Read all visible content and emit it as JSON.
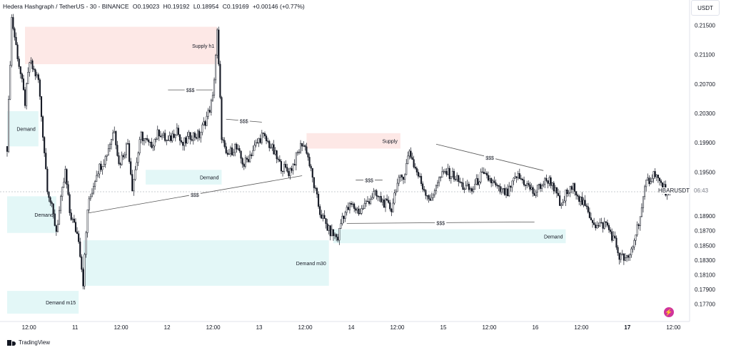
{
  "header": {
    "title": "Hedera Hashgraph / TetherUS - 30 - BINANCE",
    "open": "O0.19023",
    "high": "H0.19192",
    "low": "L0.18954",
    "close": "C0.19169",
    "change": "+0.00146 (+0.77%)"
  },
  "currency_button": "USDT",
  "symbol_tag": "HBARUSDT",
  "countdown": "06:43",
  "footer": {
    "brand": "TradingView"
  },
  "colors": {
    "up": "#131722",
    "down": "#131722",
    "supply_zone": "#fde8e6",
    "demand_zone": "#e3f7f7",
    "line": "#555555",
    "text": "#131722",
    "axis_text": "#131722",
    "flash_badge": "#d0349b"
  },
  "icons": {
    "flash": "lightning-icon",
    "logo": "tradingview-logo-icon"
  },
  "chart_data": {
    "type": "candlestick",
    "title": "Hedera Hashgraph / TetherUS - 30 - BINANCE",
    "y_ticks": [
      "0.21500",
      "0.21100",
      "0.20700",
      "0.20300",
      "0.19900",
      "0.19500",
      "0.18900",
      "0.18700",
      "0.18500",
      "0.18300",
      "0.18100",
      "0.17900",
      "0.17700"
    ],
    "ylim": [
      0.1757,
      0.2168
    ],
    "x_ticks": [
      "12:00",
      "11",
      "12:00",
      "12",
      "12:00",
      "13",
      "12:00",
      "14",
      "12:00",
      "15",
      "12:00",
      "16",
      "12:00",
      "17",
      "12:00"
    ],
    "candles_per_day": 48,
    "first_tick_index": 12,
    "last_price": 0.19169,
    "grid": false,
    "path_points": [
      [
        0,
        0.1985
      ],
      [
        1,
        0.216
      ],
      [
        4,
        0.2045
      ],
      [
        5,
        0.21
      ],
      [
        7,
        0.2075
      ],
      [
        9,
        0.193
      ],
      [
        11,
        0.187
      ],
      [
        13,
        0.195
      ],
      [
        14,
        0.1895
      ],
      [
        16,
        0.186
      ],
      [
        17,
        0.18
      ],
      [
        18,
        0.19
      ],
      [
        20,
        0.195
      ],
      [
        22,
        0.197
      ],
      [
        24,
        0.201
      ],
      [
        25,
        0.196
      ],
      [
        27,
        0.199
      ],
      [
        28,
        0.193
      ],
      [
        30,
        0.2
      ],
      [
        32,
        0.1985
      ],
      [
        34,
        0.2005
      ],
      [
        36,
        0.199
      ],
      [
        38,
        0.201
      ],
      [
        39,
        0.1985
      ],
      [
        41,
        0.2
      ],
      [
        43,
        0.2
      ],
      [
        45,
        0.203
      ],
      [
        46,
        0.205
      ],
      [
        47,
        0.214
      ],
      [
        48,
        0.2
      ],
      [
        49,
        0.197
      ],
      [
        51,
        0.1985
      ],
      [
        53,
        0.196
      ],
      [
        55,
        0.198
      ],
      [
        57,
        0.2
      ],
      [
        59,
        0.1985
      ],
      [
        61,
        0.196
      ],
      [
        63,
        0.195
      ],
      [
        64,
        0.196
      ],
      [
        66,
        0.199
      ],
      [
        67,
        0.198
      ],
      [
        68,
        0.195
      ],
      [
        70,
        0.1895
      ],
      [
        72,
        0.187
      ],
      [
        74,
        0.186
      ],
      [
        75,
        0.189
      ],
      [
        77,
        0.1905
      ],
      [
        79,
        0.1895
      ],
      [
        80,
        0.1905
      ],
      [
        82,
        0.192
      ],
      [
        84,
        0.191
      ],
      [
        86,
        0.19
      ],
      [
        87,
        0.193
      ],
      [
        89,
        0.195
      ],
      [
        90,
        0.198
      ],
      [
        91,
        0.196
      ],
      [
        93,
        0.193
      ],
      [
        95,
        0.191
      ],
      [
        96,
        0.1935
      ],
      [
        98,
        0.195
      ],
      [
        100,
        0.1945
      ],
      [
        102,
        0.193
      ],
      [
        104,
        0.1925
      ],
      [
        106,
        0.1945
      ],
      [
        108,
        0.194
      ],
      [
        110,
        0.1925
      ],
      [
        112,
        0.192
      ],
      [
        114,
        0.1945
      ],
      [
        116,
        0.1935
      ],
      [
        118,
        0.192
      ],
      [
        119,
        0.193
      ],
      [
        121,
        0.194
      ],
      [
        122,
        0.1935
      ],
      [
        124,
        0.19
      ],
      [
        125,
        0.192
      ],
      [
        127,
        0.193
      ],
      [
        128,
        0.1915
      ],
      [
        130,
        0.1895
      ],
      [
        132,
        0.1875
      ],
      [
        134,
        0.188
      ],
      [
        136,
        0.1855
      ],
      [
        137,
        0.1835
      ],
      [
        139,
        0.183
      ],
      [
        140,
        0.185
      ],
      [
        142,
        0.19
      ],
      [
        143,
        0.1935
      ],
      [
        145,
        0.195
      ],
      [
        146,
        0.1935
      ],
      [
        148,
        0.192
      ],
      [
        149,
        0.1917
      ]
    ],
    "zones": [
      {
        "label": "Supply h1",
        "type": "supply",
        "x0": 4,
        "x1": 47,
        "y_top": 0.2148,
        "y_bottom": 0.2097
      },
      {
        "label": "Supply",
        "type": "supply",
        "x0": 67,
        "x1": 88,
        "y_top": 0.2003,
        "y_bottom": 0.1982
      },
      {
        "label": "Demand",
        "type": "demand",
        "x0": 0,
        "x1": 7,
        "y_top": 0.2033,
        "y_bottom": 0.1985
      },
      {
        "label": "Demand",
        "type": "demand",
        "x0": 31,
        "x1": 48,
        "y_top": 0.1953,
        "y_bottom": 0.1933
      },
      {
        "label": "Demand",
        "type": "demand",
        "x0": 0,
        "x1": 11,
        "y_top": 0.1917,
        "y_bottom": 0.1867
      },
      {
        "label": "Demand",
        "type": "demand",
        "x0": 73,
        "x1": 125,
        "y_top": 0.1872,
        "y_bottom": 0.1853
      },
      {
        "label": "Demand m30",
        "type": "demand",
        "x0": 17,
        "x1": 72,
        "y_top": 0.1857,
        "y_bottom": 0.1795
      },
      {
        "label": "Demand m15",
        "type": "demand",
        "x0": 0,
        "x1": 16,
        "y_top": 0.1788,
        "y_bottom": 0.1757
      }
    ],
    "annotations": [
      {
        "label": "$$$",
        "x0": 18,
        "y0": 0.1894,
        "x1": 66,
        "y1": 0.1945
      },
      {
        "label": "$$$",
        "x0": 76,
        "y0": 0.188,
        "x1": 118,
        "y1": 0.1882
      },
      {
        "label": "$$$",
        "x0": 36,
        "y0": 0.2062,
        "x1": 46,
        "y1": 0.2062
      },
      {
        "label": "$$$",
        "x0": 49,
        "y0": 0.2022,
        "x1": 57,
        "y1": 0.2018
      },
      {
        "label": "$$$",
        "x0": 78,
        "y0": 0.1939,
        "x1": 84,
        "y1": 0.1939
      },
      {
        "label": "$$$",
        "x0": 96,
        "y0": 0.1988,
        "x1": 120,
        "y1": 0.1952
      }
    ]
  }
}
